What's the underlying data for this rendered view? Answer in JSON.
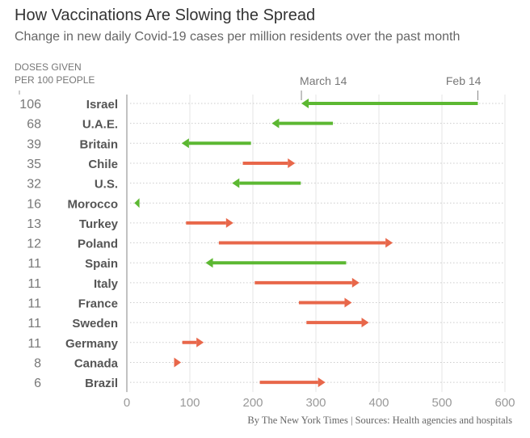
{
  "chart_data": {
    "type": "arrow-dot",
    "title": "How Vaccinations Are Slowing the Spread",
    "subtitle": "Change in new daily Covid-19 cases per million residents over the past month",
    "doses_header": [
      "DOSES GIVEN",
      "PER 100 PEOPLE"
    ],
    "start_label": "Feb 14",
    "end_label": "March 14",
    "xlim": [
      0,
      600
    ],
    "xticks": [
      "0",
      "100",
      "200",
      "300",
      "400",
      "500",
      "600"
    ],
    "xtick_values": [
      0,
      100,
      200,
      300,
      400,
      500,
      600
    ],
    "colors": {
      "decrease": "#5cb832",
      "increase": "#e8674a"
    },
    "rows": [
      {
        "country": "Israel",
        "doses": "106",
        "feb14": 557,
        "mar14": 277
      },
      {
        "country": "U.A.E.",
        "doses": "68",
        "feb14": 327,
        "mar14": 230
      },
      {
        "country": "Britain",
        "doses": "39",
        "feb14": 197,
        "mar14": 87
      },
      {
        "country": "Chile",
        "doses": "35",
        "feb14": 184,
        "mar14": 267
      },
      {
        "country": "U.S.",
        "doses": "32",
        "feb14": 276,
        "mar14": 167
      },
      {
        "country": "Morocco",
        "doses": "16",
        "feb14": 20,
        "mar14": 12
      },
      {
        "country": "Turkey",
        "doses": "13",
        "feb14": 94,
        "mar14": 169
      },
      {
        "country": "Poland",
        "doses": "12",
        "feb14": 146,
        "mar14": 422
      },
      {
        "country": "Spain",
        "doses": "11",
        "feb14": 348,
        "mar14": 125
      },
      {
        "country": "Italy",
        "doses": "11",
        "feb14": 203,
        "mar14": 369
      },
      {
        "country": "France",
        "doses": "11",
        "feb14": 273,
        "mar14": 357
      },
      {
        "country": "Sweden",
        "doses": "11",
        "feb14": 285,
        "mar14": 384
      },
      {
        "country": "Germany",
        "doses": "11",
        "feb14": 88,
        "mar14": 122
      },
      {
        "country": "Canada",
        "doses": "8",
        "feb14": 75,
        "mar14": 86
      },
      {
        "country": "Brazil",
        "doses": "6",
        "feb14": 211,
        "mar14": 315
      }
    ],
    "source": "By The New York Times | Sources: Health agencies and hospitals"
  }
}
